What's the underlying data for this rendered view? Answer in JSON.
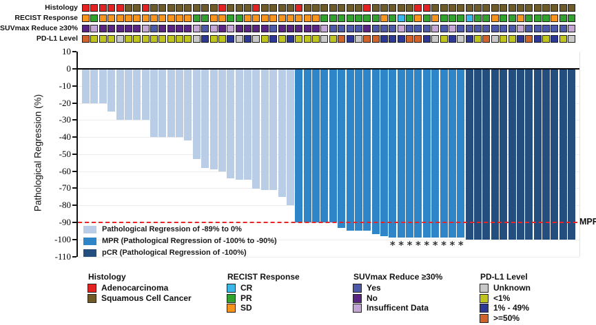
{
  "tracks": [
    {
      "label": "Histology",
      "codes": [
        "ADC",
        "ADC",
        "ADC",
        "ADC",
        "ADC",
        "SCC",
        "SCC",
        "ADC",
        "SCC",
        "SCC",
        "SCC",
        "SCC",
        "SCC",
        "SCC",
        "SCC",
        "SCC",
        "ADC",
        "SCC",
        "SCC",
        "SCC",
        "ADC",
        "SCC",
        "SCC",
        "SCC",
        "SCC",
        "ADC",
        "SCC",
        "SCC",
        "SCC",
        "SCC",
        "SCC",
        "SCC",
        "SCC",
        "ADC",
        "SCC",
        "SCC",
        "SCC",
        "SCC",
        "SCC",
        "ADC",
        "ADC",
        "SCC",
        "SCC",
        "SCC",
        "SCC",
        "SCC",
        "SCC",
        "SCC",
        "SCC",
        "SCC",
        "SCC",
        "SCC",
        "SCC",
        "SCC",
        "SCC",
        "SCC",
        "SCC",
        "SCC"
      ]
    },
    {
      "label": "RECIST Response",
      "codes": [
        "SD",
        "PR",
        "SD",
        "SD",
        "SD",
        "SD",
        "SD",
        "SD",
        "SD",
        "SD",
        "SD",
        "SD",
        "SD",
        "PR",
        "PR",
        "SD",
        "SD",
        "PR",
        "PR",
        "SD",
        "SD",
        "SD",
        "SD",
        "SD",
        "SD",
        "SD",
        "SD",
        "SD",
        "PR",
        "PR",
        "PR",
        "PR",
        "PR",
        "PR",
        "PR",
        "SD",
        "PR",
        "CR",
        "PR",
        "SD",
        "PR",
        "SD",
        "PR",
        "PR",
        "PR",
        "CR",
        "PR",
        "PR",
        "SD",
        "PR",
        "PR",
        "SD",
        "PR",
        "PR",
        "PR",
        "SD",
        "PR",
        "PR"
      ]
    },
    {
      "label": "SUVmax Reduce ≥30%",
      "codes": [
        "No",
        "Ins",
        "No",
        "No",
        "No",
        "No",
        "No",
        "Ins",
        "Yes",
        "No",
        "No",
        "No",
        "No",
        "Ins",
        "Yes",
        "Ins",
        "No",
        "Ins",
        "No",
        "No",
        "No",
        "No",
        "Yes",
        "No",
        "No",
        "No",
        "No",
        "No",
        "Ins",
        "Yes",
        "Yes",
        "Yes",
        "Yes",
        "No",
        "Yes",
        "Yes",
        "Yes",
        "Ins",
        "Yes",
        "Yes",
        "Yes",
        "Ins",
        "Yes",
        "Ins",
        "Yes",
        "Yes",
        "Yes",
        "Yes",
        "Yes",
        "Yes",
        "Yes",
        "Ins",
        "Yes",
        "Yes",
        "Yes",
        "Yes",
        "Yes",
        "Ins"
      ]
    },
    {
      "label": "PD-L1 Level",
      "codes": [
        ">=50",
        "<1",
        "<1",
        "<1",
        "Unk",
        "<1",
        "<1",
        "<1",
        "<1",
        "<1",
        "<1",
        "<1",
        "<1",
        "Unk",
        "1-49",
        "<1",
        "<1",
        "1-49",
        "Unk",
        "1-49",
        "Unk",
        "<1",
        "1-49",
        "<1",
        "1-49",
        "<1",
        "<1",
        "<1",
        "Unk",
        "<1",
        ">=50",
        "1-49",
        "Unk",
        ">=50",
        ">=50",
        "1-49",
        "1-49",
        "1-49",
        ">=50",
        ">=50",
        "1-49",
        "Unk",
        "<1",
        "1-49",
        "Unk",
        "1-49",
        "<1",
        ">=50",
        "Unk",
        "<1",
        "<1",
        "1-49",
        ">=50",
        "1-49",
        "<1",
        "1-49",
        "<1",
        "Unk"
      ]
    }
  ],
  "track_color_map": {
    "ADC": "#e32222",
    "SCC": "#6f5b28",
    "SD": "#f7941e",
    "PR": "#33a12e",
    "CR": "#3ab6e8",
    "Yes": "#4c59a9",
    "No": "#5a2483",
    "Ins": "#c3a6d4",
    "Unk": "#c8c8c8",
    "<1": "#c0c41e",
    "1-49": "#2c3894",
    ">=50": "#d0622b"
  },
  "chart_data": {
    "type": "bar",
    "title": "",
    "ylabel": "Pathological Regression (%)",
    "ylim": [
      -110,
      10
    ],
    "yticks": [
      10,
      0,
      -10,
      -20,
      -30,
      -40,
      -50,
      -60,
      -70,
      -80,
      -90,
      -100,
      -110
    ],
    "grid": "light horizontal",
    "values": [
      -20,
      -20,
      -20,
      -25,
      -30,
      -30,
      -30,
      -30,
      -40,
      -40,
      -40,
      -40,
      -42,
      -53,
      -58,
      -59,
      -60,
      -64,
      -65,
      -65,
      -70,
      -71,
      -71,
      -75,
      -80,
      -90,
      -90,
      -90,
      -90,
      -90,
      -93,
      -95,
      -95,
      -95,
      -97,
      -98,
      -99,
      -99,
      -99,
      -99,
      -99,
      -99,
      -99,
      -99,
      -99,
      -100,
      -100,
      -100,
      -100,
      -100,
      -100,
      -100,
      -100,
      -100,
      -100,
      -100,
      -100,
      -100
    ],
    "groups": [
      {
        "name": "regression",
        "from": 1,
        "to": 25,
        "color": "#b9cde6"
      },
      {
        "name": "mpr",
        "from": 26,
        "to": 45,
        "color": "#2e86c8"
      },
      {
        "name": "pcr",
        "from": 46,
        "to": 58,
        "color": "#234e7e"
      }
    ],
    "reference_line": {
      "value": -90,
      "label": "MPR",
      "color": "#ee2222",
      "style": "dashed"
    },
    "asterisk_bars": [
      37,
      38,
      39,
      40,
      41,
      42,
      43,
      44,
      45
    ],
    "asterisk_symbol": "*",
    "legend": [
      {
        "label": "Pathological Regression of -89% to 0%",
        "color": "#b9cde6"
      },
      {
        "label": "MPR (Pathological Regression of -100% to -90%)",
        "color": "#2e86c8"
      },
      {
        "label": "pCR (Pathological Regression of -100%)",
        "color": "#234e7e"
      }
    ]
  },
  "bottom_legends": [
    {
      "title": "Histology",
      "items": [
        {
          "label": "Adenocarcinoma",
          "color": "#e32222"
        },
        {
          "label": "Squamous Cell Cancer",
          "color": "#6f5b28"
        }
      ]
    },
    {
      "title": "RECIST Response",
      "items": [
        {
          "label": "CR",
          "color": "#3ab6e8"
        },
        {
          "label": "PR",
          "color": "#33a12e"
        },
        {
          "label": "SD",
          "color": "#f7941e"
        }
      ]
    },
    {
      "title": "SUVmax Reduce ≥30%",
      "items": [
        {
          "label": "Yes",
          "color": "#4c59a9"
        },
        {
          "label": "No",
          "color": "#5a2483"
        },
        {
          "label": "Insufficent Data",
          "color": "#c3a6d4"
        }
      ]
    },
    {
      "title": "PD-L1 Level",
      "items": [
        {
          "label": "Unknown",
          "color": "#c8c8c8"
        },
        {
          "label": "<1%",
          "color": "#c0c41e"
        },
        {
          "label": "1% - 49%",
          "color": "#2c3894"
        },
        {
          "label": ">=50%",
          "color": "#d0622b"
        }
      ]
    }
  ]
}
